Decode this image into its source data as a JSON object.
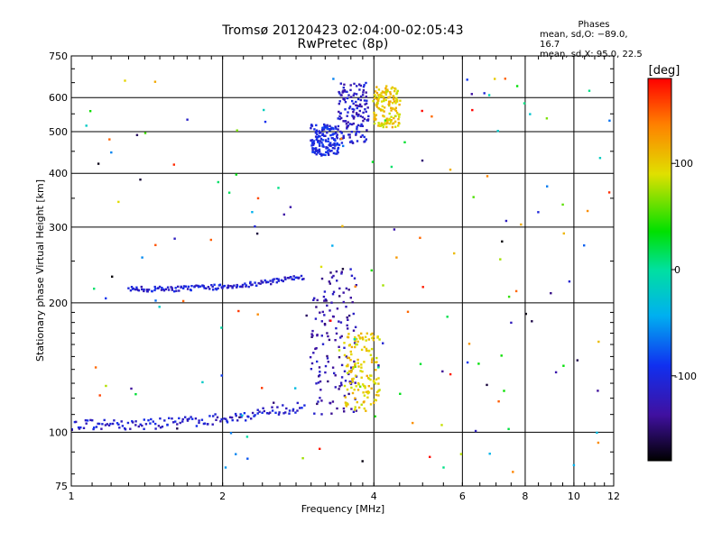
{
  "title": {
    "line1": "Tromsø 20120423 02:04:00-02:05:43",
    "line2": "RwPretec (8p)"
  },
  "phases_box": {
    "header": "Phases",
    "line1": "mean, sd,O: −89.0, 16.7",
    "line2": "mean, sd,X:  95.0, 22.5"
  },
  "colors": {
    "grid": "#000000",
    "dominant_trace": "#1a40e6",
    "secondary_trace": "#2a14b4",
    "x_mode_trace": "#f0c814"
  },
  "chart_data": {
    "type": "scatter",
    "title": "Tromsø 20120423 02:04:00-02:05:43",
    "subtitle": "RwPretec (8p)",
    "xlabel": "Frequency [MHz]",
    "ylabel": "Stationary phase Virtual Height [km]",
    "x_scale": "log",
    "y_scale": "log",
    "xlim": [
      1,
      12
    ],
    "ylim": [
      75,
      750
    ],
    "x_ticks": [
      1,
      2,
      4,
      6,
      8,
      10,
      12
    ],
    "y_ticks": [
      75,
      100,
      200,
      300,
      400,
      500,
      600,
      750
    ],
    "grid": true,
    "colorbar": {
      "label": "[deg]",
      "range": [
        -180,
        180
      ],
      "ticks": [
        100,
        0,
        -100
      ]
    },
    "traces": [
      {
        "fmin": 1.0,
        "fmax": 2.9,
        "h_start": 104,
        "h_end": 115,
        "phase": -110
      },
      {
        "fmin": 1.3,
        "fmax": 2.9,
        "h_start": 215,
        "h_end": 230,
        "phase": -110
      },
      {
        "fmin": 3.0,
        "fmax": 3.4,
        "h_start": 440,
        "h_end": 520,
        "phase": -100
      },
      {
        "fmin": 3.4,
        "fmax": 3.9,
        "h_start": 470,
        "h_end": 650,
        "phase": -115
      },
      {
        "fmin": 3.0,
        "fmax": 3.7,
        "h_start": 110,
        "h_end": 240,
        "phase": -130
      },
      {
        "fmin": 3.5,
        "fmax": 4.1,
        "h_start": 112,
        "h_end": 170,
        "phase": 100
      },
      {
        "fmin": 4.0,
        "fmax": 4.5,
        "h_start": 510,
        "h_end": 640,
        "phase": 100
      }
    ]
  }
}
